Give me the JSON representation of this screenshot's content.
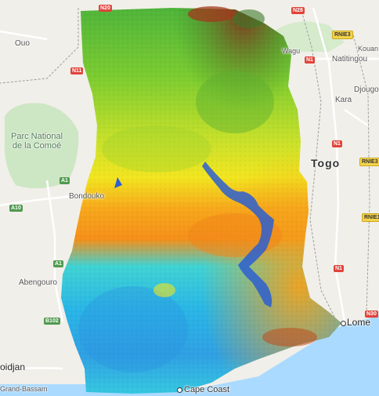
{
  "map": {
    "labels": {
      "ouo": "Ouo",
      "parc": "Parc National\nde la Comoé",
      "bondouko": "Bondouko",
      "abengourou": "Abengouro",
      "abidjan": "oidjan",
      "grand_bassam": "Grand-Bassam",
      "wagu": "Wagu",
      "natitingou": "Natitingou",
      "kouan": "Kouan",
      "djougou": "Djougo",
      "kara": "Kara",
      "togo": "Togo",
      "lome": "Lome",
      "cape_coast": "Cape Coast"
    },
    "shields": {
      "n20": "N20",
      "n28": "N28",
      "rnie3_top": "RNIE3",
      "n1_top": "N1",
      "n11": "N11",
      "n1_mid": "N1",
      "rnie3_mid": "RNIE3",
      "a1_top": "A1",
      "a10": "A10",
      "rnie1": "RNIE1",
      "a1_bot": "A1",
      "n1_bot": "N1",
      "b102": "B102",
      "n30": "N30"
    },
    "colors": {
      "land": "#f1efe9",
      "ocean": "#aadaff",
      "park": "#cde6c4",
      "road": "#ffffff",
      "border": "#9e9e9e"
    }
  }
}
